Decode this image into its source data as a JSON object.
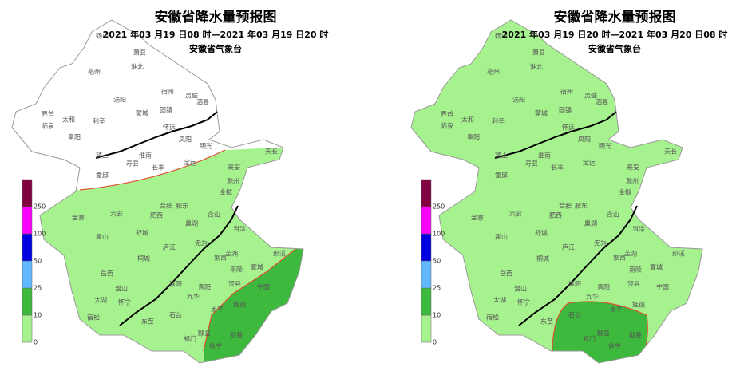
{
  "panels": [
    {
      "title": "安徽省降水量预报图",
      "time_range": "2021 年03 月19 日08 时—2021 年03 月19 日20 时",
      "agency": "安徽省气象台",
      "legend": [
        "0",
        "10",
        "25",
        "50",
        "100",
        "250"
      ],
      "cities": [
        "砀山",
        "萧县",
        "淮北",
        "亳州",
        "涡阳",
        "宿州",
        "灵璧",
        "泗县",
        "蒙城",
        "固镇",
        "界首",
        "太和",
        "临泉",
        "利辛",
        "阜阳",
        "怀远",
        "凤阳",
        "颍上",
        "淮南",
        "寿县",
        "长丰",
        "定远",
        "明光",
        "天长",
        "霍邱",
        "来安",
        "滁州",
        "全椒",
        "金寨",
        "六安",
        "合肥",
        "肥东",
        "肥西",
        "含山",
        "巢湖",
        "舒城",
        "霍山",
        "庐江",
        "无为",
        "当涂",
        "芜湖",
        "桐城",
        "繁昌",
        "南陵",
        "宣城",
        "郎溪",
        "岳西",
        "潜山",
        "太湖",
        "怀宁",
        "枞阳",
        "青阳",
        "泾县",
        "宁国",
        "九华",
        "宿松",
        "东至",
        "石台",
        "太平",
        "旌德",
        "祁门",
        "黟县",
        "歙县",
        "休宁"
      ]
    },
    {
      "title": "安徽省降水量预报图",
      "time_range": "2021 年03 月19 日20 时—2021 年03 月20 日08 时",
      "agency": "安徽省气象台",
      "legend": [
        "0",
        "10",
        "25",
        "50",
        "100",
        "250"
      ],
      "cities": [
        "砀山",
        "萧县",
        "淮北",
        "亳州",
        "涡阳",
        "宿州",
        "灵璧",
        "泗县",
        "蒙城",
        "固镇",
        "界首",
        "太和",
        "临泉",
        "利辛",
        "阜阳",
        "怀远",
        "凤阳",
        "颍上",
        "淮南",
        "寿县",
        "长丰",
        "定远",
        "明光",
        "天长",
        "霍邱",
        "来安",
        "滁州",
        "全椒",
        "金寨",
        "六安",
        "合肥",
        "肥东",
        "肥西",
        "含山",
        "巢湖",
        "舒城",
        "霍山",
        "庐江",
        "无为",
        "当涂",
        "芜湖",
        "桐城",
        "繁昌",
        "南陵",
        "宣城",
        "郎溪",
        "岳西",
        "潜山",
        "太湖",
        "怀宁",
        "枞阳",
        "青阳",
        "泾县",
        "宁国",
        "九华",
        "宿松",
        "东至",
        "石台",
        "太平",
        "旌德",
        "祁门",
        "黟县",
        "歙县",
        "休宁"
      ]
    }
  ]
}
